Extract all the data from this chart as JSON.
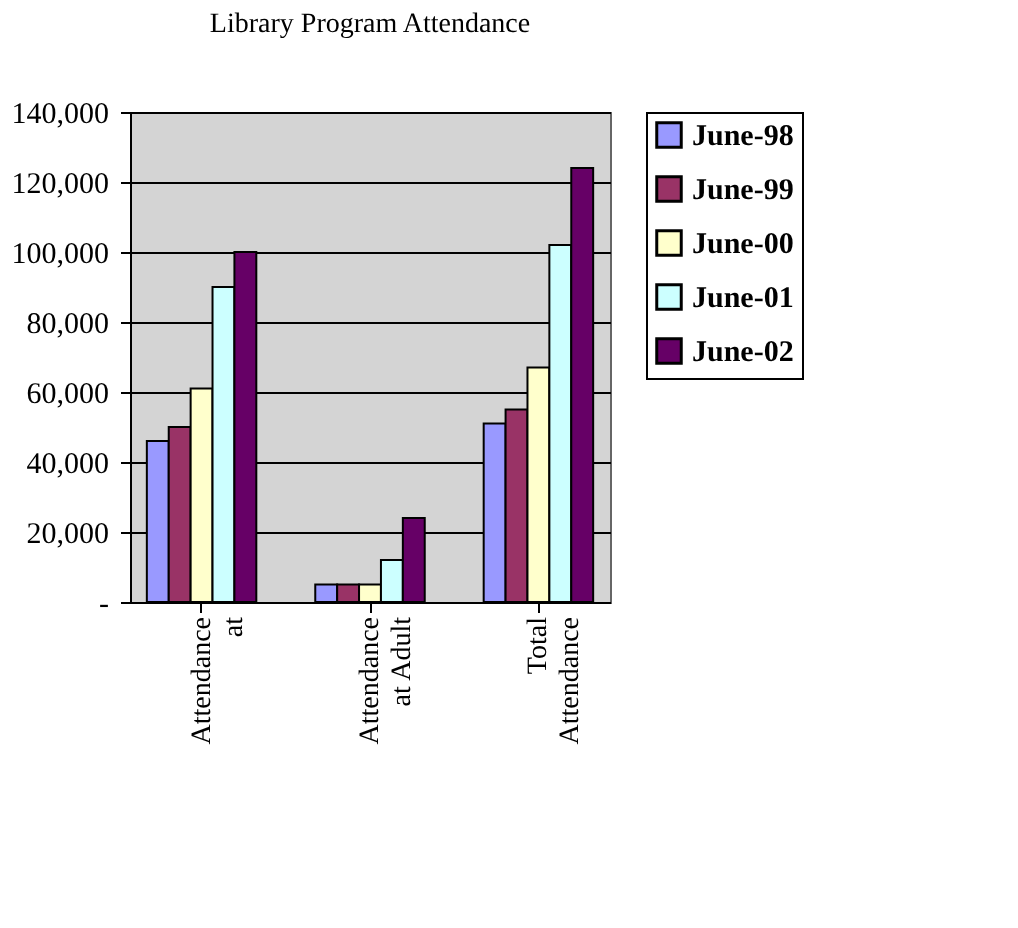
{
  "chart_data": {
    "type": "bar",
    "title": "Library Program Attendance",
    "categories": [
      "Attendance at",
      "Attendance at Adult",
      "Total Attendance"
    ],
    "series": [
      {
        "name": "June-98",
        "color": "#9999ff",
        "values": [
          46000,
          5000,
          51000
        ]
      },
      {
        "name": "June-99",
        "color": "#993366",
        "values": [
          50000,
          5000,
          55000
        ]
      },
      {
        "name": "June-00",
        "color": "#ffffcc",
        "values": [
          61000,
          5000,
          67000
        ]
      },
      {
        "name": "June-01",
        "color": "#ccffff",
        "values": [
          90000,
          12000,
          102000
        ]
      },
      {
        "name": "June-02",
        "color": "#660066",
        "values": [
          100000,
          24000,
          124000
        ]
      }
    ],
    "ylim": [
      0,
      140000
    ],
    "yticks": [
      {
        "value": 0,
        "label": "-"
      },
      {
        "value": 20000,
        "label": "20,000"
      },
      {
        "value": 40000,
        "label": "40,000"
      },
      {
        "value": 60000,
        "label": "60,000"
      },
      {
        "value": 80000,
        "label": "80,000"
      },
      {
        "value": 100000,
        "label": "100,000"
      },
      {
        "value": 120000,
        "label": "120,000"
      },
      {
        "value": 140000,
        "label": "140,000"
      }
    ],
    "grid": "y",
    "legend": "right"
  }
}
